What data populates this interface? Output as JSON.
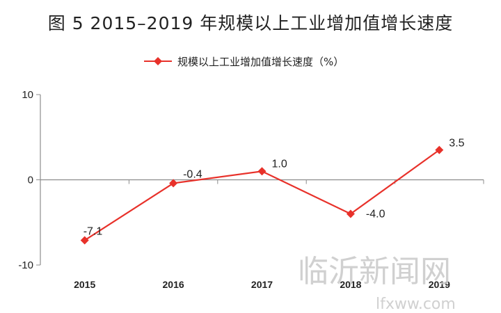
{
  "title": "图 5  2015–2019 年规模以上工业增加值增长速度",
  "chart_data": {
    "type": "line",
    "x": [
      "2015",
      "2016",
      "2017",
      "2018",
      "2019"
    ],
    "series": [
      {
        "name": "规模以上工业增加值增长速度（%）",
        "values": [
          -7.1,
          -0.4,
          1.0,
          -4.0,
          3.5
        ],
        "labels": [
          "-7.1",
          "-0.4",
          "1.0",
          "-4.0",
          "3.5"
        ],
        "color": "#e8312a"
      }
    ],
    "ylim": [
      -10,
      10
    ],
    "yticks": [
      "10",
      "0",
      "-10"
    ],
    "grid": false,
    "legend": "top-center"
  },
  "watermark": {
    "cn": "临沂新闻网",
    "url": "lfxww.com"
  }
}
